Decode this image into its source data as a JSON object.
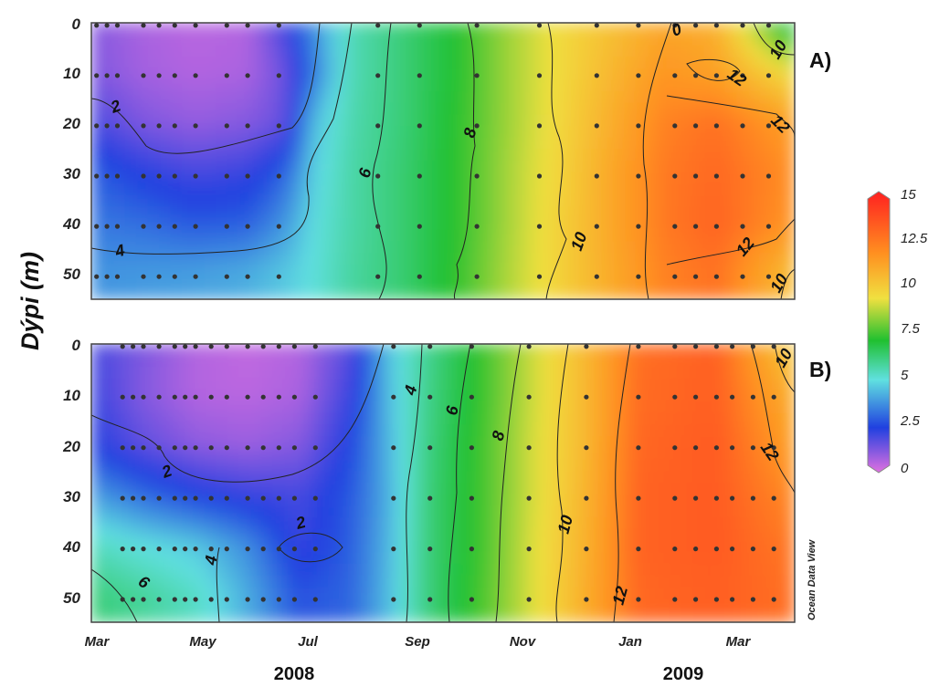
{
  "chart_data": {
    "type": "heatmap",
    "y_axis_label": "Dýpi (m)",
    "y_ticks": [
      "0",
      "10",
      "20",
      "30",
      "40",
      "50"
    ],
    "ylim": [
      55,
      0
    ],
    "x_ticks": [
      "Mar",
      "May",
      "Jul",
      "Sep",
      "Nov",
      "Jan",
      "Mar"
    ],
    "x_months": [
      0,
      2,
      4,
      6,
      8,
      10,
      12
    ],
    "xlim_months": [
      0,
      13.5
    ],
    "years": [
      "2008",
      "2009"
    ],
    "colorbar": {
      "ticks": [
        "15",
        "12.5",
        "10",
        "7.5",
        "5",
        "2.5",
        "0"
      ],
      "range": [
        0,
        15
      ],
      "colors": [
        "#e070e0",
        "#2040e0",
        "#60e0e0",
        "#20c030",
        "#f0e040",
        "#ff9020",
        "#ff2020"
      ]
    },
    "watermark": "Ocean Data View",
    "panels": [
      {
        "label": "A)",
        "columns": [
          {
            "month": 0.0,
            "depth": [
              1.2,
              1.3,
              2.0,
              3.0,
              3.4,
              3.8
            ]
          },
          {
            "month": 1.0,
            "depth": [
              0.7,
              0.8,
              1.3,
              2.4,
              3.2,
              3.9
            ]
          },
          {
            "month": 2.0,
            "depth": [
              0.5,
              0.6,
              1.0,
              2.0,
              2.9,
              4.0
            ]
          },
          {
            "month": 3.0,
            "depth": [
              0.6,
              0.7,
              1.2,
              2.2,
              3.0,
              4.2
            ]
          },
          {
            "month": 3.7,
            "depth": [
              2.0,
              1.5,
              1.6,
              3.0,
              3.8,
              4.6
            ]
          },
          {
            "month": 4.3,
            "depth": [
              3.8,
              3.5,
              4.5,
              4.8,
              5.0,
              5.1
            ]
          },
          {
            "month": 5.0,
            "depth": [
              5.6,
              5.6,
              5.7,
              5.8,
              5.8,
              5.9
            ]
          },
          {
            "month": 6.0,
            "depth": [
              6.5,
              6.5,
              6.5,
              6.6,
              6.6,
              6.6
            ]
          },
          {
            "month": 7.0,
            "depth": [
              7.5,
              7.5,
              7.6,
              7.6,
              7.6,
              7.7
            ]
          },
          {
            "month": 8.0,
            "depth": [
              9.0,
              9.0,
              9.0,
              9.1,
              9.1,
              9.2
            ]
          },
          {
            "month": 9.0,
            "depth": [
              10.2,
              10.2,
              10.3,
              10.4,
              10.5,
              10.5
            ]
          },
          {
            "month": 10.0,
            "depth": [
              11.0,
              11.3,
              11.6,
              11.8,
              11.8,
              11.7
            ]
          },
          {
            "month": 11.0,
            "depth": [
              11.8,
              12.3,
              12.8,
              13.0,
              13.0,
              12.8
            ]
          },
          {
            "month": 12.0,
            "depth": [
              11.5,
              12.0,
              13.2,
              13.4,
              13.5,
              13.2
            ]
          },
          {
            "month": 13.5,
            "depth": [
              6.5,
              10.0,
              12.0,
              12.5,
              12.3,
              11.0
            ]
          }
        ],
        "contours": [
          "0",
          "2",
          "4",
          "6",
          "8",
          "10",
          "12",
          "10",
          "12",
          "12",
          "10",
          "12",
          "10"
        ]
      },
      {
        "label": "B)",
        "columns": [
          {
            "month": 0.0,
            "depth": [
              2.0,
              2.2,
              2.5,
              4.0,
              5.5,
              6.5
            ]
          },
          {
            "month": 1.0,
            "depth": [
              1.3,
              1.2,
              1.7,
              3.2,
              5.0,
              6.0
            ]
          },
          {
            "month": 2.0,
            "depth": [
              0.6,
              0.6,
              1.1,
              2.6,
              4.6,
              5.4
            ]
          },
          {
            "month": 3.0,
            "depth": [
              0.4,
              0.5,
              0.9,
              2.2,
              3.7,
              4.2
            ]
          },
          {
            "month": 4.0,
            "depth": [
              0.6,
              0.7,
              1.2,
              2.0,
              2.2,
              2.8
            ]
          },
          {
            "month": 5.0,
            "depth": [
              1.8,
              2.2,
              2.6,
              2.9,
              3.0,
              3.1
            ]
          },
          {
            "month": 5.7,
            "depth": [
              4.5,
              4.4,
              4.3,
              4.2,
              4.3,
              4.4
            ]
          },
          {
            "month": 6.5,
            "depth": [
              6.2,
              6.3,
              6.4,
              6.5,
              6.5,
              6.5
            ]
          },
          {
            "month": 7.5,
            "depth": [
              7.8,
              7.8,
              7.9,
              7.9,
              7.9,
              8.0
            ]
          },
          {
            "month": 8.5,
            "depth": [
              9.6,
              9.6,
              9.7,
              9.7,
              9.8,
              9.8
            ]
          },
          {
            "month": 9.5,
            "depth": [
              11.3,
              11.3,
              11.3,
              11.4,
              11.5,
              11.6
            ]
          },
          {
            "month": 10.5,
            "depth": [
              13.2,
              13.3,
              13.4,
              13.5,
              13.5,
              13.4
            ]
          },
          {
            "month": 12.0,
            "depth": [
              13.6,
              13.6,
              13.7,
              13.7,
              13.7,
              13.6
            ]
          },
          {
            "month": 13.5,
            "depth": [
              10.5,
              11.5,
              12.0,
              12.6,
              13.0,
              13.2
            ]
          }
        ],
        "contours": [
          "2",
          "2",
          "4",
          "4",
          "6",
          "6",
          "8",
          "10",
          "12",
          "10",
          "12"
        ]
      }
    ]
  }
}
